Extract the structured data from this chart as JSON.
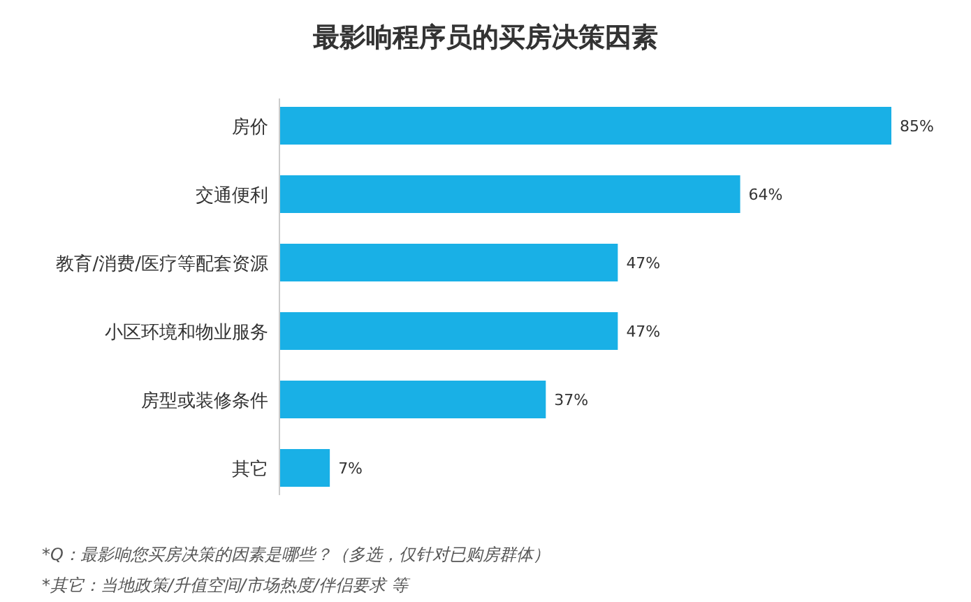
{
  "chart_data": {
    "type": "bar",
    "orientation": "horizontal",
    "title": "最影响程序员的买房决策因素",
    "categories": [
      "房价",
      "交通便利",
      "教育/消费/医疗等配套资源",
      "小区环境和物业服务",
      "房型或装修条件",
      "其它"
    ],
    "values": [
      85,
      64,
      47,
      47,
      37,
      7
    ],
    "value_labels": [
      "85%",
      "64%",
      "47%",
      "47%",
      "37%",
      "7%"
    ],
    "color": "#19b0e6",
    "annotations": [
      "*Q：最影响您买房决策的因素是哪些？（多选，仅针对已购房群体）",
      "*其它：当地政策/升值空间/市场热度/伴侣要求 等"
    ]
  }
}
